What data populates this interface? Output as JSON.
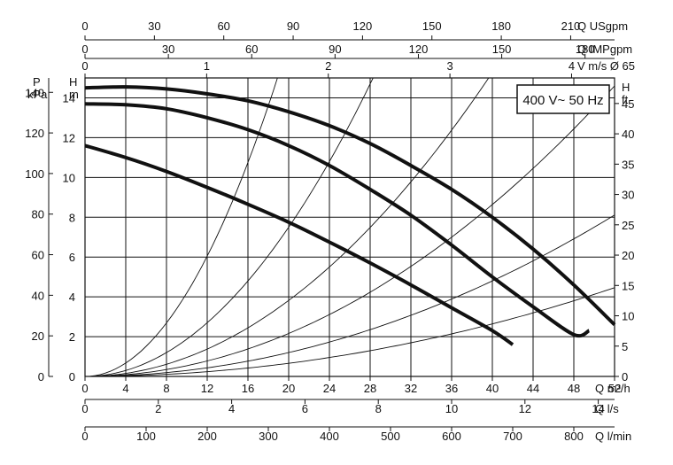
{
  "chart_data": {
    "type": "line",
    "legend_box": "400 V~ 50 Hz",
    "grid": true,
    "x_main": {
      "label": "Q m³/h",
      "range": [
        0,
        52
      ],
      "ticks": [
        0,
        4,
        8,
        12,
        16,
        20,
        24,
        28,
        32,
        36,
        40,
        44,
        48,
        52
      ]
    },
    "y_main": {
      "label": "H",
      "unit": "m",
      "range": [
        0,
        15
      ],
      "ticks": [
        0,
        2,
        4,
        6,
        8,
        10,
        12,
        14
      ]
    },
    "y_pressure": {
      "label": "P",
      "unit": "kPa",
      "ticks": [
        0,
        20,
        40,
        60,
        80,
        100,
        120,
        140
      ]
    },
    "y_right": {
      "label": "H",
      "unit": "ft",
      "ticks": [
        0,
        5,
        10,
        15,
        20,
        25,
        30,
        35,
        40,
        45
      ]
    },
    "top_axes": [
      {
        "label": "Q USgpm",
        "ticks": [
          0,
          30,
          60,
          90,
          120,
          150,
          180,
          210
        ]
      },
      {
        "label": "Q IMPgpm",
        "ticks": [
          0,
          30,
          60,
          90,
          120,
          150,
          180
        ]
      },
      {
        "label": "V m/s Ø 65",
        "ticks": [
          0,
          1,
          2,
          3,
          4
        ]
      }
    ],
    "bottom_axes": [
      {
        "label": "Q l/s",
        "ticks": [
          0,
          2,
          4,
          6,
          8,
          10,
          12,
          14
        ]
      },
      {
        "label": "Q l/min",
        "ticks": [
          0,
          100,
          200,
          300,
          400,
          500,
          600,
          700,
          800
        ]
      }
    ],
    "series": [
      {
        "x": [
          0,
          4,
          8,
          12,
          16,
          20,
          24,
          28,
          32,
          36,
          40,
          44,
          48,
          52
        ],
        "y": [
          14.5,
          14.55,
          14.45,
          14.2,
          13.85,
          13.3,
          12.6,
          11.7,
          10.6,
          9.4,
          8.0,
          6.4,
          4.6,
          2.6
        ]
      },
      {
        "x": [
          0,
          4,
          8,
          12,
          16,
          20,
          24,
          28,
          32,
          36,
          40,
          44,
          48,
          49.5
        ],
        "y": [
          13.7,
          13.65,
          13.45,
          13.0,
          12.4,
          11.6,
          10.6,
          9.4,
          8.1,
          6.6,
          5.0,
          3.5,
          2.1,
          2.3
        ]
      },
      {
        "x": [
          0,
          4,
          8,
          12,
          16,
          20,
          24,
          28,
          32,
          36,
          40,
          42
        ],
        "y": [
          11.6,
          11.0,
          10.3,
          9.5,
          8.65,
          7.75,
          6.75,
          5.7,
          4.6,
          3.45,
          2.3,
          1.6
        ]
      }
    ],
    "system_curves": [
      {
        "k": 0.042
      },
      {
        "k": 0.01875
      },
      {
        "k": 0.00955
      },
      {
        "k": 0.0054
      },
      {
        "k": 0.003
      },
      {
        "k": 0.00165
      }
    ]
  }
}
